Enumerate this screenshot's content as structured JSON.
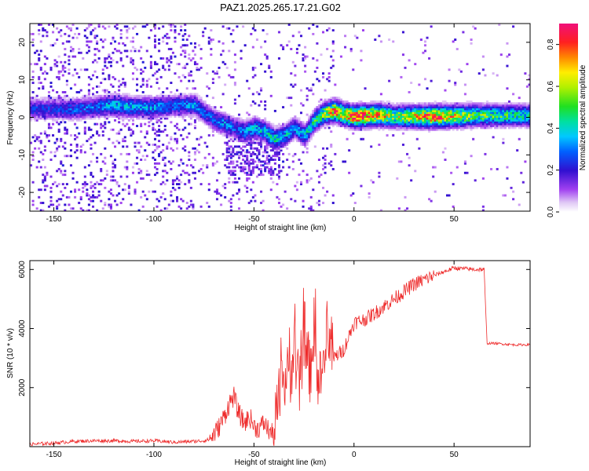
{
  "title": "PAZ1.2025.265.17.21.G02",
  "chart_data": [
    {
      "type": "heatmap",
      "xlabel": "Height of straight line (km)",
      "ylabel": "Frequency (Hz)",
      "xlim": [
        -162,
        88
      ],
      "ylim": [
        -25,
        25
      ],
      "x_ticks": [
        -150,
        -100,
        -50,
        0,
        50
      ],
      "y_ticks": [
        -20,
        -10,
        0,
        10,
        20
      ],
      "colorbar": {
        "label": "Normalized spectral amplitude",
        "range": [
          0,
          0.9
        ],
        "ticks": [
          0.0,
          0.2,
          0.4,
          0.6,
          0.8
        ]
      },
      "ridge": {
        "x": [
          -148,
          -140,
          -130,
          -120,
          -110,
          -100,
          -90,
          -80,
          -75,
          -70,
          -65,
          -60,
          -55,
          -50,
          -45,
          -40,
          -35,
          -30,
          -25,
          -20,
          -15,
          -10,
          -5,
          0,
          10,
          20,
          40,
          60,
          88
        ],
        "y": [
          2,
          2,
          2.5,
          3,
          2.5,
          2.5,
          3,
          3,
          1,
          -1,
          -2,
          -3,
          -4,
          -3,
          -4,
          -6,
          -5,
          -3,
          -5,
          -1,
          1,
          1.5,
          0.5,
          0,
          0.5,
          0,
          0,
          0.3,
          0.3
        ],
        "peak": [
          0.25,
          0.3,
          0.3,
          0.4,
          0.35,
          0.35,
          0.3,
          0.35,
          0.3,
          0.3,
          0.35,
          0.3,
          0.35,
          0.4,
          0.4,
          0.45,
          0.4,
          0.35,
          0.4,
          0.5,
          0.6,
          0.85,
          0.75,
          0.9,
          0.8,
          0.6,
          0.85,
          0.55,
          0.45
        ]
      }
    },
    {
      "type": "line",
      "xlabel": "Height of straight line (km)",
      "ylabel": "SNR (10 * v/v)",
      "xlim": [
        -162,
        88
      ],
      "ylim": [
        0,
        6300
      ],
      "x_ticks": [
        -150,
        -100,
        -50,
        0,
        50
      ],
      "y_ticks": [
        2000,
        4000,
        6000
      ],
      "series": [
        {
          "color": "#ee2b2b",
          "x": [
            -162,
            -150,
            -140,
            -130,
            -120,
            -110,
            -100,
            -90,
            -80,
            -75,
            -72,
            -68,
            -65,
            -62,
            -60,
            -58,
            -55,
            -52,
            -50,
            -48,
            -45,
            -42,
            -40,
            -38,
            -35,
            -32,
            -30,
            -27,
            -25,
            -22,
            -20,
            -18,
            -15,
            -12,
            -10,
            -5,
            0,
            5,
            10,
            20,
            30,
            40,
            50,
            60,
            65,
            66,
            66.5,
            70,
            80,
            88
          ],
          "y": [
            80,
            120,
            180,
            200,
            200,
            180,
            200,
            150,
            180,
            200,
            250,
            600,
            1000,
            1500,
            1700,
            1200,
            800,
            1000,
            700,
            600,
            800,
            500,
            400,
            1500,
            2200,
            2500,
            3000,
            2000,
            3800,
            2500,
            4000,
            2000,
            2700,
            3600,
            3000,
            3300,
            4200,
            4300,
            4500,
            5000,
            5500,
            5800,
            6050,
            6000,
            6000,
            4300,
            3500,
            3500,
            3450,
            3450
          ]
        }
      ]
    }
  ]
}
